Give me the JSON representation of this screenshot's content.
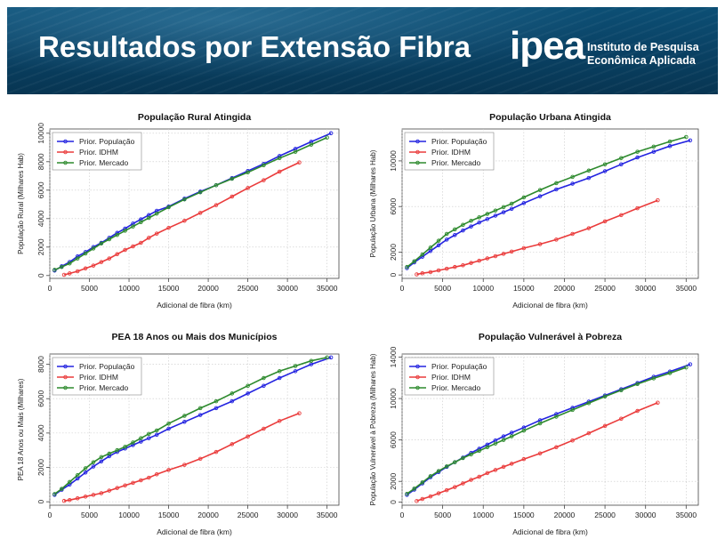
{
  "header": {
    "title": "Resultados por Extensão Fibra",
    "logo_text": "ipea",
    "logo_line1": "Instituto de Pesquisa",
    "logo_line2": "Econômica Aplicada"
  },
  "colors": {
    "blue": "#2323e0",
    "red": "#ea3b3b",
    "green": "#2d8a2d",
    "banner": "#0a4366"
  },
  "chart_data": [
    {
      "type": "line",
      "title": "População Rural Atingida",
      "xlabel": "Adicional de fibra (km)",
      "ylabel": "População Rural (Milhares Hab)",
      "xlim": [
        0,
        36500
      ],
      "ylim": [
        -200,
        10300
      ],
      "xticks": [
        0,
        5000,
        10000,
        15000,
        20000,
        25000,
        30000,
        35000
      ],
      "xtick_labels": [
        "0",
        "5000",
        "10000",
        "15000",
        "20000",
        "25000",
        "30000",
        "35000"
      ],
      "yticks": [
        0,
        2000,
        4000,
        6000,
        8000,
        10000
      ],
      "ytick_labels": [
        "0",
        "2000",
        "4000",
        "6000",
        "8000",
        "10000"
      ],
      "grid": true,
      "legend_position": "top-left",
      "series": [
        {
          "name": "Prior. População",
          "color": "#2323e0",
          "x": [
            600,
            1500,
            2500,
            3500,
            4500,
            5500,
            6500,
            7500,
            8500,
            9500,
            10500,
            11500,
            12500,
            13500,
            15000,
            17000,
            19000,
            21000,
            23000,
            25000,
            27000,
            29000,
            31000,
            33000,
            35500
          ],
          "y": [
            350,
            650,
            950,
            1350,
            1650,
            2000,
            2300,
            2650,
            3000,
            3300,
            3650,
            3950,
            4250,
            4550,
            4850,
            5400,
            5900,
            6350,
            6850,
            7350,
            7850,
            8400,
            8900,
            9400,
            10000
          ]
        },
        {
          "name": "Prior. IDHM",
          "color": "#ea3b3b",
          "x": [
            1800,
            2500,
            3500,
            4500,
            5500,
            6500,
            7500,
            8500,
            9500,
            10500,
            11500,
            12500,
            13500,
            15000,
            17000,
            19000,
            21000,
            23000,
            25000,
            27000,
            29000,
            31500
          ],
          "y": [
            50,
            150,
            300,
            500,
            700,
            950,
            1200,
            1500,
            1800,
            2050,
            2300,
            2650,
            2950,
            3350,
            3850,
            4400,
            4950,
            5550,
            6150,
            6700,
            7300,
            7950
          ]
        },
        {
          "name": "Prior. Mercado",
          "color": "#2d8a2d",
          "x": [
            600,
            1500,
            2500,
            3500,
            4500,
            5500,
            6500,
            7500,
            8500,
            9500,
            10500,
            11500,
            12500,
            13500,
            15000,
            17000,
            19000,
            21000,
            23000,
            25000,
            27000,
            29000,
            31000,
            33000,
            35000
          ],
          "y": [
            400,
            600,
            850,
            1200,
            1550,
            1900,
            2250,
            2550,
            2850,
            3150,
            3450,
            3750,
            4050,
            4350,
            4800,
            5350,
            5850,
            6350,
            6800,
            7250,
            7750,
            8250,
            8700,
            9200,
            9700
          ]
        }
      ]
    },
    {
      "type": "line",
      "title": "População Urbana Atingida",
      "xlabel": "Adicional de fibra (km)",
      "ylabel": "População Urbana (Milhares Hab)",
      "xlim": [
        0,
        36500
      ],
      "ylim": [
        -300,
        12800
      ],
      "xticks": [
        0,
        5000,
        10000,
        15000,
        20000,
        25000,
        30000,
        35000
      ],
      "xtick_labels": [
        "0",
        "5000",
        "10000",
        "15000",
        "20000",
        "25000",
        "30000",
        "35000"
      ],
      "yticks": [
        0,
        2000,
        6000,
        10000
      ],
      "ytick_labels": [
        "0",
        "2000",
        "6000",
        "10000"
      ],
      "grid": true,
      "legend_position": "top-left",
      "series": [
        {
          "name": "Prior. População",
          "color": "#2323e0",
          "x": [
            600,
            1500,
            2500,
            3500,
            4500,
            5500,
            6500,
            7500,
            8500,
            9500,
            10500,
            11500,
            12500,
            13500,
            15000,
            17000,
            19000,
            21000,
            23000,
            25000,
            27000,
            29000,
            31000,
            33000,
            35500
          ],
          "y": [
            600,
            1100,
            1600,
            2100,
            2600,
            3100,
            3500,
            3900,
            4250,
            4600,
            4900,
            5200,
            5500,
            5800,
            6300,
            6900,
            7500,
            8000,
            8500,
            9100,
            9700,
            10300,
            10800,
            11300,
            11800
          ]
        },
        {
          "name": "Prior. IDHM",
          "color": "#ea3b3b",
          "x": [
            1800,
            2500,
            3500,
            4500,
            5500,
            6500,
            7500,
            8500,
            9500,
            10500,
            11500,
            12500,
            13500,
            15000,
            17000,
            19000,
            21000,
            23000,
            25000,
            27000,
            29000,
            31500
          ],
          "y": [
            50,
            150,
            250,
            400,
            550,
            700,
            850,
            1050,
            1250,
            1450,
            1650,
            1850,
            2050,
            2350,
            2700,
            3100,
            3600,
            4100,
            4700,
            5250,
            5850,
            6550
          ]
        },
        {
          "name": "Prior. Mercado",
          "color": "#2d8a2d",
          "x": [
            600,
            1500,
            2500,
            3500,
            4500,
            5500,
            6500,
            7500,
            8500,
            9500,
            10500,
            11500,
            12500,
            13500,
            15000,
            17000,
            19000,
            21000,
            23000,
            25000,
            27000,
            29000,
            31000,
            33000,
            35000
          ],
          "y": [
            700,
            1200,
            1800,
            2400,
            3000,
            3600,
            4000,
            4400,
            4750,
            5050,
            5350,
            5650,
            5950,
            6250,
            6800,
            7450,
            8050,
            8600,
            9150,
            9700,
            10250,
            10800,
            11250,
            11700,
            12100
          ]
        }
      ]
    },
    {
      "type": "line",
      "title": "PEA 18 Anos ou Mais dos Municípios",
      "xlabel": "Adicional de fibra (km)",
      "ylabel": "PEA 18 Anos ou Mais (Milhares)",
      "xlim": [
        0,
        36500
      ],
      "ylim": [
        -200,
        8600
      ],
      "xticks": [
        0,
        5000,
        10000,
        15000,
        20000,
        25000,
        30000,
        35000
      ],
      "xtick_labels": [
        "0",
        "5000",
        "10000",
        "15000",
        "20000",
        "25000",
        "30000",
        "35000"
      ],
      "yticks": [
        0,
        2000,
        4000,
        6000,
        8000
      ],
      "ytick_labels": [
        "0",
        "2000",
        "4000",
        "6000",
        "8000"
      ],
      "grid": true,
      "legend_position": "top-left",
      "series": [
        {
          "name": "Prior. População",
          "color": "#2323e0",
          "x": [
            600,
            1500,
            2500,
            3500,
            4500,
            5500,
            6500,
            7500,
            8500,
            9500,
            10500,
            11500,
            12500,
            13500,
            15000,
            17000,
            19000,
            21000,
            23000,
            25000,
            27000,
            29000,
            31000,
            33000,
            35500
          ],
          "y": [
            400,
            700,
            1000,
            1350,
            1700,
            2050,
            2350,
            2650,
            2900,
            3100,
            3300,
            3500,
            3700,
            3900,
            4250,
            4650,
            5050,
            5450,
            5850,
            6300,
            6750,
            7200,
            7600,
            8000,
            8400
          ]
        },
        {
          "name": "Prior. IDHM",
          "color": "#ea3b3b",
          "x": [
            1800,
            2500,
            3500,
            4500,
            5500,
            6500,
            7500,
            8500,
            9500,
            10500,
            11500,
            12500,
            13500,
            15000,
            17000,
            19000,
            21000,
            23000,
            25000,
            27000,
            29000,
            31500
          ],
          "y": [
            50,
            100,
            200,
            300,
            400,
            500,
            650,
            800,
            950,
            1100,
            1250,
            1400,
            1600,
            1850,
            2150,
            2500,
            2900,
            3350,
            3800,
            4250,
            4700,
            5150
          ]
        },
        {
          "name": "Prior. Mercado",
          "color": "#2d8a2d",
          "x": [
            600,
            1500,
            2500,
            3500,
            4500,
            5500,
            6500,
            7500,
            8500,
            9500,
            10500,
            11500,
            12500,
            13500,
            15000,
            17000,
            19000,
            21000,
            23000,
            25000,
            27000,
            29000,
            31000,
            33000,
            35000
          ],
          "y": [
            450,
            750,
            1150,
            1550,
            1950,
            2300,
            2600,
            2800,
            3000,
            3200,
            3450,
            3700,
            3950,
            4150,
            4550,
            5000,
            5450,
            5850,
            6300,
            6750,
            7200,
            7600,
            7900,
            8200,
            8400
          ]
        }
      ]
    },
    {
      "type": "line",
      "title": "População Vulnerável à Pobreza",
      "xlabel": "Adicional de fibra (km)",
      "ylabel": "População Vulnerável à Pobreza (Milhares Hab)",
      "xlim": [
        0,
        36500
      ],
      "ylim": [
        -300,
        14300
      ],
      "xticks": [
        0,
        5000,
        10000,
        15000,
        20000,
        25000,
        30000,
        35000
      ],
      "xtick_labels": [
        "0",
        "5000",
        "10000",
        "15000",
        "20000",
        "25000",
        "30000",
        "35000"
      ],
      "yticks": [
        0,
        2000,
        6000,
        10000,
        14000
      ],
      "ytick_labels": [
        "0",
        "2000",
        "6000",
        "10000",
        "14000"
      ],
      "grid": true,
      "legend_position": "top-left",
      "series": [
        {
          "name": "Prior. População",
          "color": "#2323e0",
          "x": [
            600,
            1500,
            2500,
            3500,
            4500,
            5500,
            6500,
            7500,
            8500,
            9500,
            10500,
            11500,
            12500,
            13500,
            15000,
            17000,
            19000,
            21000,
            23000,
            25000,
            27000,
            29000,
            31000,
            33000,
            35500
          ],
          "y": [
            700,
            1200,
            1800,
            2400,
            2900,
            3400,
            3850,
            4300,
            4750,
            5150,
            5550,
            5950,
            6350,
            6700,
            7200,
            7900,
            8500,
            9100,
            9700,
            10300,
            10900,
            11500,
            12100,
            12600,
            13300
          ]
        },
        {
          "name": "Prior. IDHM",
          "color": "#ea3b3b",
          "x": [
            1800,
            2500,
            3500,
            4500,
            5500,
            6500,
            7500,
            8500,
            9500,
            10500,
            11500,
            12500,
            13500,
            15000,
            17000,
            19000,
            21000,
            23000,
            25000,
            27000,
            29000,
            31500
          ],
          "y": [
            100,
            300,
            550,
            850,
            1150,
            1450,
            1800,
            2150,
            2450,
            2800,
            3100,
            3400,
            3700,
            4150,
            4700,
            5300,
            5950,
            6650,
            7350,
            8050,
            8800,
            9600
          ]
        },
        {
          "name": "Prior. Mercado",
          "color": "#2d8a2d",
          "x": [
            600,
            1500,
            2500,
            3500,
            4500,
            5500,
            6500,
            7500,
            8500,
            9500,
            10500,
            11500,
            12500,
            13500,
            15000,
            17000,
            19000,
            21000,
            23000,
            25000,
            27000,
            29000,
            31000,
            33000,
            35000
          ],
          "y": [
            800,
            1300,
            1900,
            2500,
            3000,
            3450,
            3850,
            4250,
            4600,
            4950,
            5300,
            5650,
            6000,
            6350,
            6900,
            7600,
            8250,
            8900,
            9550,
            10200,
            10800,
            11400,
            11950,
            12450,
            13000
          ]
        }
      ]
    }
  ]
}
